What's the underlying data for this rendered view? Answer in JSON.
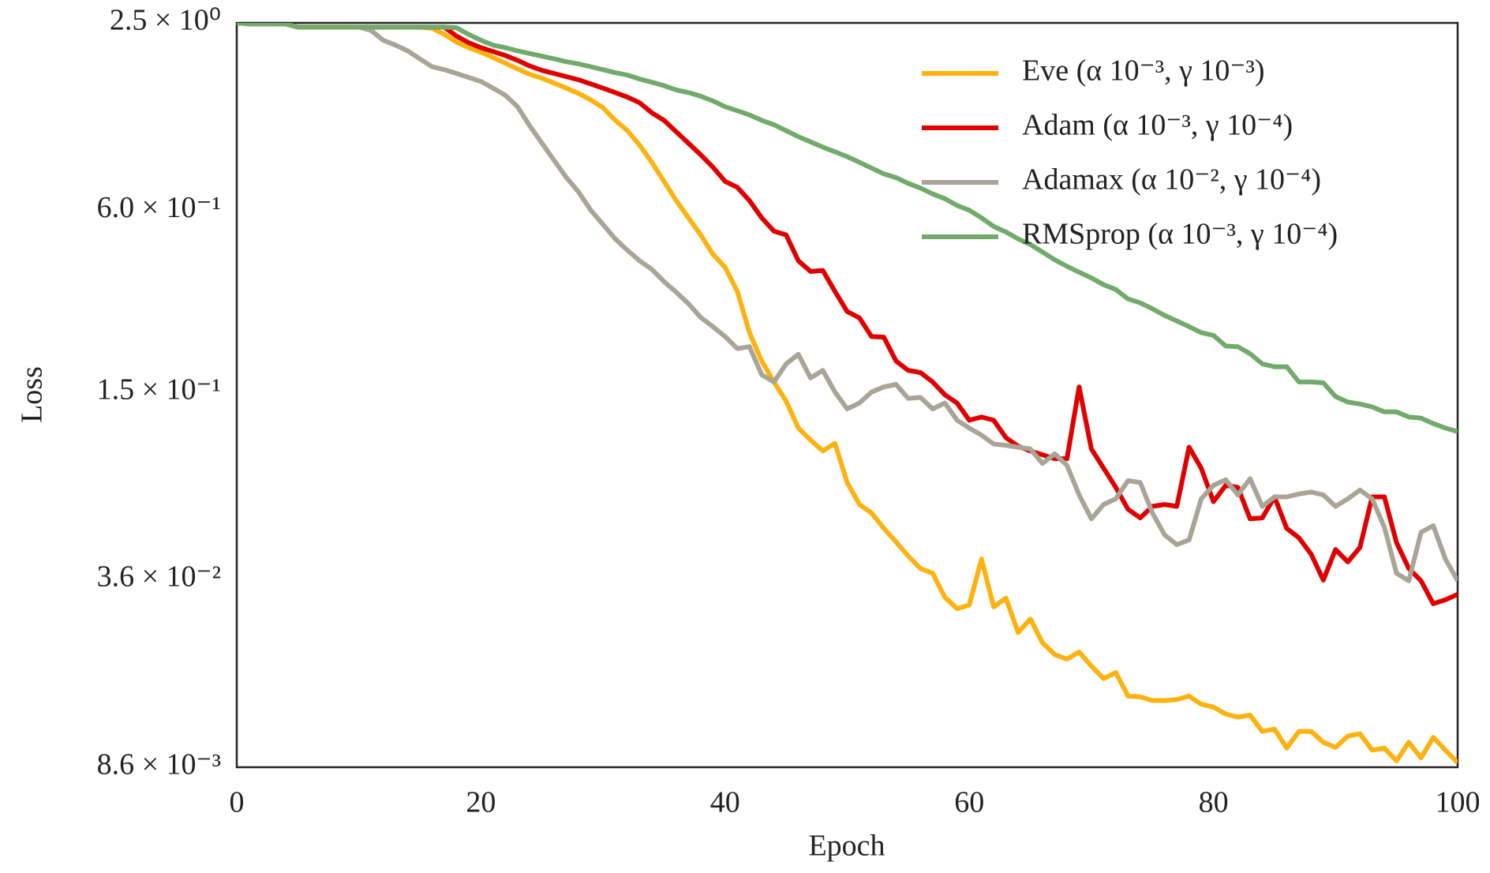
{
  "chart_data": {
    "type": "line",
    "yscale": "log",
    "grid": false,
    "legend": "upper right",
    "xlabel": "Epoch",
    "ylabel": "Loss",
    "xlim": [
      0,
      100
    ],
    "xticks": [
      0,
      20,
      40,
      60,
      80,
      100
    ],
    "ylim": [
      0.0086,
      2.5
    ],
    "yticks": [
      {
        "value": 2.5,
        "label": "2.5 × 10⁰"
      },
      {
        "value": 0.6,
        "label": "6.0 × 10⁻¹"
      },
      {
        "value": 0.15,
        "label": "1.5 × 10⁻¹"
      },
      {
        "value": 0.036,
        "label": "3.6 × 10⁻²"
      },
      {
        "value": 0.0086,
        "label": "8.6 × 10⁻³"
      }
    ],
    "x": [
      0,
      1,
      2,
      3,
      4,
      5,
      6,
      7,
      8,
      9,
      10,
      11,
      12,
      13,
      14,
      15,
      16,
      17,
      18,
      19,
      20,
      21,
      22,
      23,
      24,
      25,
      26,
      27,
      28,
      29,
      30,
      31,
      32,
      33,
      34,
      35,
      36,
      37,
      38,
      39,
      40,
      41,
      42,
      43,
      44,
      45,
      46,
      47,
      48,
      49,
      50,
      51,
      52,
      53,
      54,
      55,
      56,
      57,
      58,
      59,
      60,
      61,
      62,
      63,
      64,
      65,
      66,
      67,
      68,
      69,
      70,
      71,
      72,
      73,
      74,
      75,
      76,
      77,
      78,
      79,
      80,
      81,
      82,
      83,
      84,
      85,
      86,
      87,
      88,
      89,
      90,
      91,
      92,
      93,
      94,
      95,
      96,
      97,
      98,
      99,
      100
    ],
    "series": [
      {
        "name": "Eve (α 10⁻³, γ 10⁻³)",
        "color": "#fdb20f",
        "values": [
          2.5,
          2.48,
          2.48,
          2.48,
          2.48,
          2.42,
          2.42,
          2.42,
          2.42,
          2.42,
          2.42,
          2.42,
          2.42,
          2.42,
          2.42,
          2.42,
          2.4,
          2.29,
          2.16,
          2.07,
          2.0,
          1.92,
          1.84,
          1.76,
          1.69,
          1.64,
          1.58,
          1.52,
          1.46,
          1.39,
          1.31,
          1.19,
          1.1,
          0.984,
          0.864,
          0.747,
          0.645,
          0.566,
          0.497,
          0.429,
          0.388,
          0.323,
          0.236,
          0.19,
          0.162,
          0.14,
          0.114,
          0.104,
          0.0958,
          0.1015,
          0.0753,
          0.0637,
          0.0597,
          0.0531,
          0.0479,
          0.043,
          0.0391,
          0.0377,
          0.0314,
          0.0288,
          0.0296,
          0.042,
          0.0292,
          0.0312,
          0.024,
          0.0266,
          0.0222,
          0.0203,
          0.0196,
          0.0207,
          0.0186,
          0.0169,
          0.0177,
          0.0148,
          0.0147,
          0.0143,
          0.0143,
          0.0144,
          0.0148,
          0.0139,
          0.0136,
          0.0129,
          0.0126,
          0.0128,
          0.0113,
          0.0115,
          0.00995,
          0.0113,
          0.0113,
          0.0104,
          0.01,
          0.0109,
          0.0111,
          0.0098,
          0.00995,
          0.00903,
          0.0104,
          0.00923,
          0.0108,
          0.0098,
          0.0089
        ]
      },
      {
        "name": "Adam (α 10⁻³, γ 10⁻⁴)",
        "color": "#e00000",
        "values": [
          2.5,
          2.48,
          2.48,
          2.48,
          2.48,
          2.42,
          2.42,
          2.42,
          2.42,
          2.42,
          2.42,
          2.42,
          2.42,
          2.42,
          2.42,
          2.42,
          2.42,
          2.42,
          2.26,
          2.15,
          2.07,
          2.01,
          1.95,
          1.88,
          1.8,
          1.74,
          1.7,
          1.66,
          1.62,
          1.57,
          1.52,
          1.47,
          1.42,
          1.36,
          1.26,
          1.19,
          1.09,
          0.999,
          0.915,
          0.833,
          0.747,
          0.714,
          0.645,
          0.566,
          0.511,
          0.497,
          0.408,
          0.376,
          0.379,
          0.323,
          0.277,
          0.264,
          0.229,
          0.228,
          0.19,
          0.177,
          0.174,
          0.162,
          0.147,
          0.138,
          0.121,
          0.124,
          0.121,
          0.106,
          0.0993,
          0.0958,
          0.093,
          0.0903,
          0.0903,
          0.156,
          0.0972,
          0.084,
          0.0726,
          0.0614,
          0.0575,
          0.0628,
          0.0637,
          0.0628,
          0.0986,
          0.084,
          0.0651,
          0.0737,
          0.0726,
          0.0571,
          0.0575,
          0.0675,
          0.0531,
          0.0494,
          0.0436,
          0.0358,
          0.0452,
          0.0411,
          0.0459,
          0.0675,
          0.0675,
          0.0476,
          0.0391,
          0.0356,
          0.0299,
          0.0308,
          0.0321
        ]
      },
      {
        "name": "Adamax (α 10⁻², γ 10⁻⁴)",
        "color": "#a8a496",
        "values": [
          2.5,
          2.48,
          2.48,
          2.48,
          2.48,
          2.42,
          2.42,
          2.42,
          2.42,
          2.42,
          2.42,
          2.36,
          2.19,
          2.11,
          2.02,
          1.9,
          1.79,
          1.75,
          1.7,
          1.65,
          1.6,
          1.52,
          1.44,
          1.32,
          1.14,
          0.999,
          0.876,
          0.769,
          0.689,
          0.6,
          0.538,
          0.482,
          0.442,
          0.408,
          0.382,
          0.348,
          0.321,
          0.294,
          0.265,
          0.247,
          0.229,
          0.209,
          0.212,
          0.171,
          0.162,
          0.186,
          0.2,
          0.167,
          0.177,
          0.15,
          0.132,
          0.138,
          0.15,
          0.156,
          0.159,
          0.143,
          0.144,
          0.132,
          0.138,
          0.121,
          0.114,
          0.108,
          0.101,
          0.1,
          0.0986,
          0.0972,
          0.0871,
          0.0937,
          0.0858,
          0.0685,
          0.0571,
          0.0637,
          0.0665,
          0.0764,
          0.0753,
          0.0597,
          0.0505,
          0.0469,
          0.0486,
          0.0665,
          0.0737,
          0.0769,
          0.0685,
          0.0775,
          0.0628,
          0.0675,
          0.0675,
          0.069,
          0.07,
          0.0685,
          0.0628,
          0.0665,
          0.0711,
          0.0665,
          0.0535,
          0.0377,
          0.0356,
          0.0515,
          0.0542,
          0.042,
          0.0356
        ]
      },
      {
        "name": "RMSprop (α 10⁻³, γ 10⁻⁴)",
        "color": "#72aa6c",
        "values": [
          2.5,
          2.48,
          2.48,
          2.48,
          2.48,
          2.42,
          2.42,
          2.42,
          2.42,
          2.42,
          2.42,
          2.42,
          2.42,
          2.42,
          2.42,
          2.42,
          2.42,
          2.42,
          2.41,
          2.29,
          2.19,
          2.11,
          2.07,
          2.02,
          1.98,
          1.94,
          1.9,
          1.86,
          1.83,
          1.79,
          1.75,
          1.71,
          1.68,
          1.63,
          1.59,
          1.55,
          1.5,
          1.47,
          1.43,
          1.38,
          1.32,
          1.28,
          1.24,
          1.19,
          1.15,
          1.1,
          1.05,
          1.01,
          0.97,
          0.936,
          0.902,
          0.864,
          0.827,
          0.791,
          0.769,
          0.736,
          0.71,
          0.679,
          0.655,
          0.622,
          0.6,
          0.566,
          0.53,
          0.508,
          0.482,
          0.462,
          0.436,
          0.411,
          0.391,
          0.374,
          0.358,
          0.34,
          0.328,
          0.305,
          0.296,
          0.283,
          0.269,
          0.258,
          0.247,
          0.236,
          0.231,
          0.213,
          0.212,
          0.201,
          0.186,
          0.182,
          0.182,
          0.162,
          0.162,
          0.161,
          0.145,
          0.139,
          0.137,
          0.134,
          0.129,
          0.129,
          0.124,
          0.123,
          0.118,
          0.114,
          0.111
        ]
      }
    ]
  }
}
